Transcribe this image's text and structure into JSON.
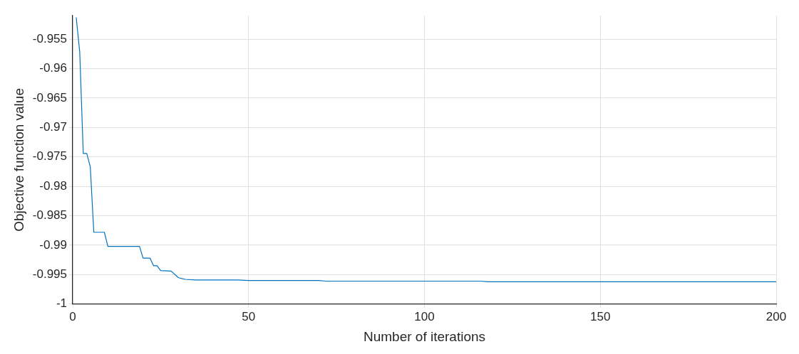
{
  "chart_data": {
    "type": "line",
    "xlabel": "Number of iterations",
    "ylabel": "Objective function value",
    "x": [
      1,
      2,
      3,
      4,
      5,
      6,
      9,
      10,
      19,
      20,
      22,
      23,
      24,
      25,
      28,
      30,
      32,
      35,
      47,
      50,
      70,
      72,
      116,
      118,
      200
    ],
    "series": [
      {
        "color": "#0072bd",
        "values": [
          -0.9513,
          -0.9572,
          -0.9744,
          -0.9744,
          -0.9767,
          -0.9878,
          -0.9878,
          -0.9902,
          -0.9902,
          -0.9922,
          -0.9922,
          -0.9935,
          -0.9935,
          -0.9943,
          -0.9944,
          -0.9955,
          -0.9958,
          -0.9959,
          -0.9959,
          -0.996,
          -0.996,
          -0.9961,
          -0.9961,
          -0.9962,
          -0.9962
        ]
      }
    ],
    "xlim": [
      0,
      200
    ],
    "xticks": [
      0,
      50,
      100,
      150,
      200
    ],
    "ylim": [
      -1,
      -0.951
    ],
    "yticks": [
      -1,
      -0.995,
      -0.99,
      -0.985,
      -0.98,
      -0.975,
      -0.97,
      -0.965,
      -0.96,
      -0.955
    ],
    "grid": true,
    "legend": false,
    "marker": "none",
    "line_style": "solid"
  }
}
